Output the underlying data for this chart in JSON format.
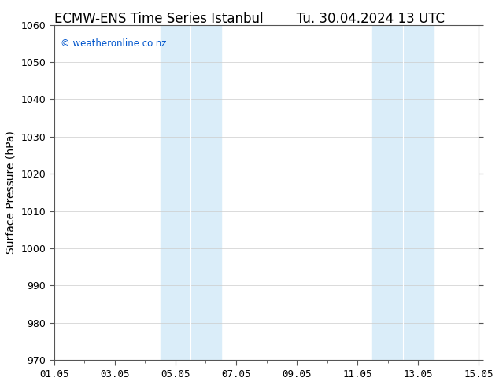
{
  "title_left": "ECMW-ENS Time Series Istanbul",
  "title_right": "Tu. 30.04.2024 13 UTC",
  "ylabel": "Surface Pressure (hPa)",
  "ylim": [
    970,
    1060
  ],
  "yticks": [
    970,
    980,
    990,
    1000,
    1010,
    1020,
    1030,
    1040,
    1050,
    1060
  ],
  "xlim": [
    0,
    14
  ],
  "xtick_labels": [
    "01.05",
    "03.05",
    "05.05",
    "07.05",
    "09.05",
    "11.05",
    "13.05",
    "15.05"
  ],
  "xtick_positions": [
    0,
    2,
    4,
    6,
    8,
    10,
    12,
    14
  ],
  "shade_bands": [
    {
      "x_start": 3.5,
      "x_end": 4.5,
      "color": "#daedf9"
    },
    {
      "x_start": 4.5,
      "x_end": 5.5,
      "color": "#daedf9"
    },
    {
      "x_start": 10.5,
      "x_end": 11.5,
      "color": "#daedf9"
    },
    {
      "x_start": 11.5,
      "x_end": 12.5,
      "color": "#daedf9"
    }
  ],
  "shade_color": "#daedf9",
  "watermark": "© weatheronline.co.nz",
  "watermark_color": "#0055cc",
  "background_color": "#ffffff",
  "plot_bg_color": "#ffffff",
  "title_fontsize": 12,
  "ylabel_fontsize": 10,
  "tick_fontsize": 9,
  "watermark_fontsize": 8.5,
  "grid_color": "#cccccc",
  "spine_color": "#555555"
}
